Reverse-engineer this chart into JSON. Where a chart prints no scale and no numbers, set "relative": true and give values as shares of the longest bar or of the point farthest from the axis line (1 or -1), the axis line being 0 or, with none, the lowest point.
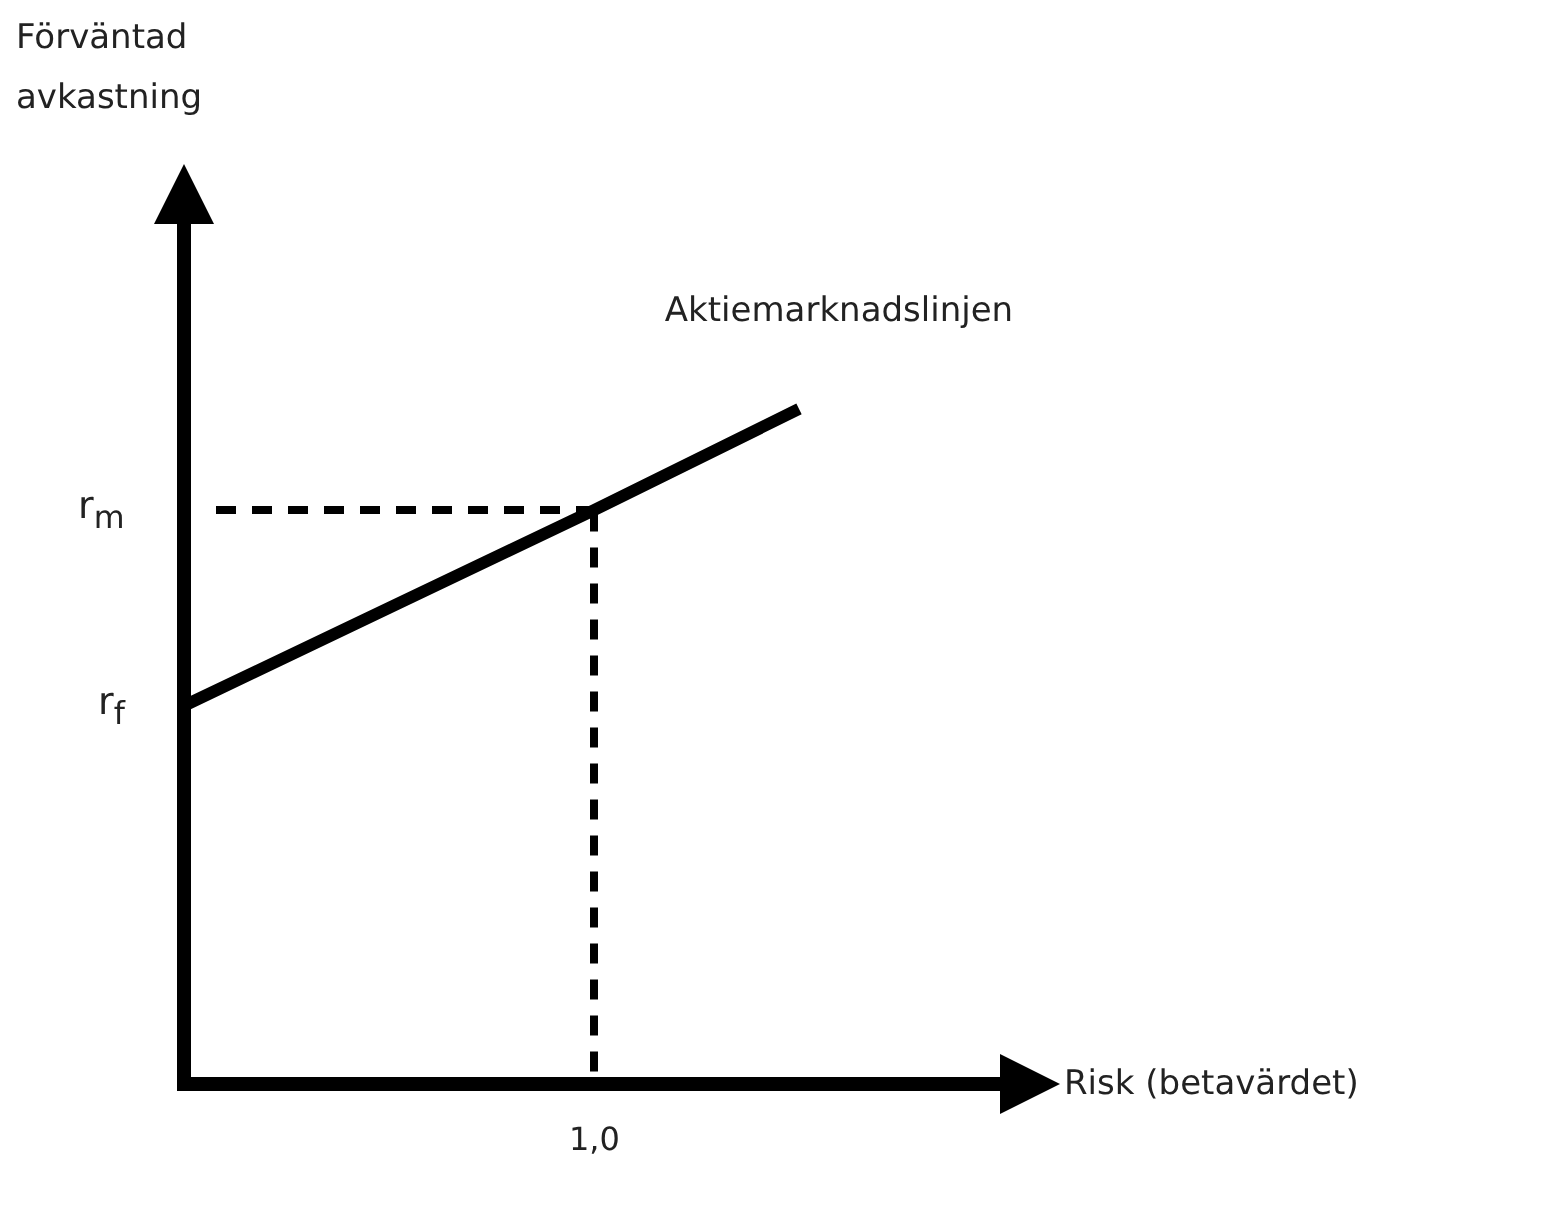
{
  "chart_data": {
    "type": "line",
    "xlabel": "Risk (betavärdet)",
    "categories": [
      null,
      null,
      null,
      null,
      null
    ],
    "series": [
      {
        "name": "Aktiemarknadslinjen",
        "color": "#000000",
        "values": [
          0.56,
          0.705,
          0.85,
          1.0,
          null
        ]
      }
    ],
    "relative": true,
    "annotations": [
      "r$_{f}$",
      "r$_{m}$",
      "1,0",
      "Förväntad avkastning"
    ],
    "ref_lines": [
      {
        "axis": "y",
        "value": 0.85,
        "label": null,
        "color": "#000000",
        "line_style": "dashed"
      }
    ],
    "grid": false,
    "legend": false,
    "marker": "none",
    "line_style": "solid"
  }
}
